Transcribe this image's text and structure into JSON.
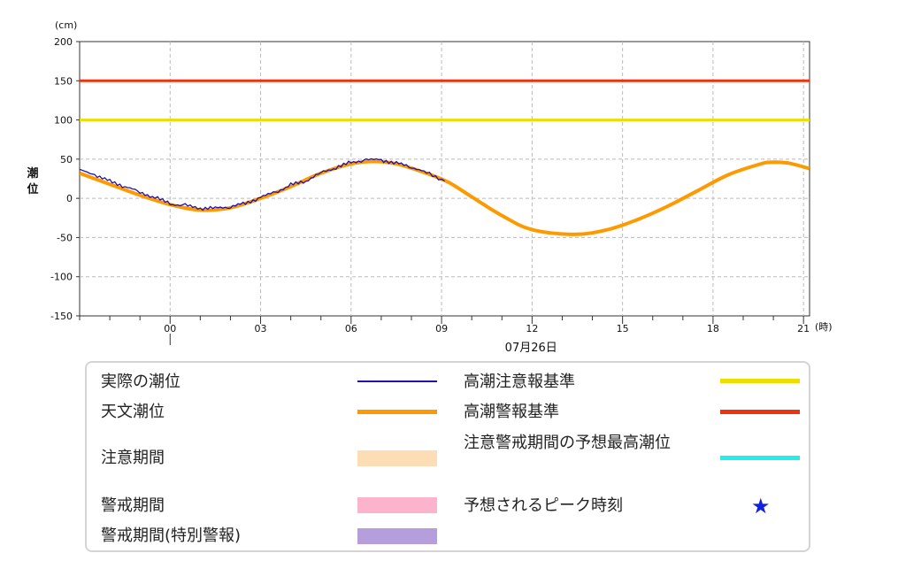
{
  "chart_data": {
    "type": "line",
    "y_unit": "(cm)",
    "ylabel": "潮位",
    "x_unit": "(時)",
    "date_label": "07月26日",
    "ylim": [
      -150,
      200
    ],
    "y_ticks": [
      200,
      150,
      100,
      50,
      0,
      -50,
      -100,
      -150
    ],
    "y_tick_labels": [
      "200",
      "150",
      "100",
      "50",
      "0",
      "-50",
      "-100",
      "-150"
    ],
    "x_range_hours": [
      -3,
      21.2
    ],
    "x_ticks": [
      0,
      3,
      6,
      9,
      12,
      15,
      18,
      21
    ],
    "x_tick_labels": [
      "00",
      "03",
      "06",
      "09",
      "12",
      "15",
      "18",
      "21"
    ],
    "grid": true,
    "series": [
      {
        "name": "天文潮位",
        "color": "#FF9900",
        "x": [
          -3,
          -2,
          -1,
          0,
          1,
          2,
          3,
          4,
          5,
          6,
          6.75,
          7.5,
          8.5,
          9.25,
          10,
          11,
          12,
          13.4,
          14.5,
          15.5,
          16.5,
          17.5,
          18.5,
          19.5,
          19.9,
          20.5,
          21.2
        ],
        "values": [
          32,
          18,
          4,
          -8,
          -15,
          -12,
          0,
          15,
          32,
          44,
          47,
          44,
          32,
          20,
          2,
          -22,
          -40,
          -46,
          -40,
          -27,
          -10,
          10,
          30,
          43,
          46,
          45,
          38
        ]
      },
      {
        "name": "実際の潮位",
        "color": "#2211AA",
        "x": [
          -3,
          -2.5,
          -2,
          -1.5,
          -1,
          -0.5,
          0,
          0.5,
          1,
          1.5,
          2,
          2.5,
          3,
          3.5,
          4,
          4.5,
          5,
          5.5,
          6,
          6.5,
          7,
          7.5,
          8,
          8.5,
          9.1
        ],
        "values": [
          36,
          30,
          22,
          15,
          8,
          1,
          -7,
          -9,
          -13,
          -12,
          -11,
          -6,
          1,
          8,
          17,
          22,
          33,
          39,
          46,
          49,
          49,
          45,
          40,
          33,
          22
        ]
      }
    ],
    "reference_lines": [
      {
        "name": "高潮警報基準",
        "value": 150,
        "color": "#EE3311"
      },
      {
        "name": "高潮注意報基準",
        "value": 100,
        "color": "#EEDD00"
      }
    ]
  },
  "legend": {
    "items": [
      {
        "label": "実際の潮位",
        "color": "#2211AA",
        "kind": "thin-line"
      },
      {
        "label": "天文潮位",
        "color": "#FF9900",
        "kind": "thick-line"
      },
      {
        "label": "注意期間",
        "color": "#FDDDB5",
        "kind": "band"
      },
      {
        "label": "警戒期間",
        "color": "#FBB4CB",
        "kind": "band"
      },
      {
        "label": "警戒期間(特別警報)",
        "color": "#B49EDC",
        "kind": "band"
      },
      {
        "label": "高潮注意報基準",
        "color": "#EEDD00",
        "kind": "thick-line"
      },
      {
        "label": "高潮警報基準",
        "color": "#EE3311",
        "kind": "thick-line"
      },
      {
        "label": "注意警戒期間の予想最高潮位",
        "color": "#22EEEE",
        "kind": "thick-line"
      },
      {
        "label": "予想されるピーク時刻",
        "color": "#1122DD",
        "kind": "star",
        "symbol": "★"
      }
    ]
  }
}
